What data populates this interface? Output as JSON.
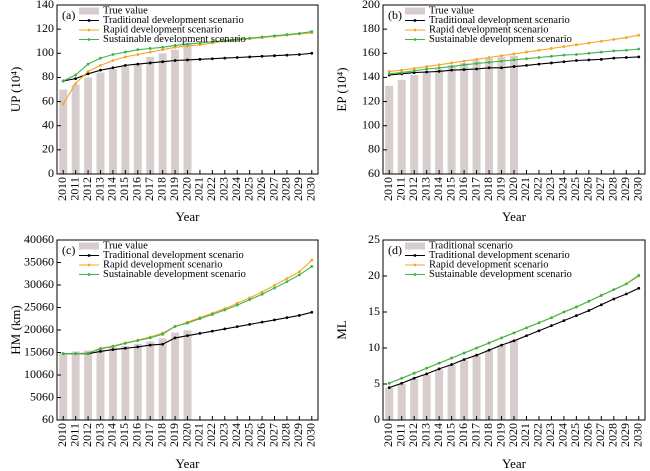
{
  "chart_data": [
    {
      "type": "combo",
      "label": "(a)",
      "ylabel": "UP (10⁴)",
      "xlabel": "Year",
      "categories": [
        "2010",
        "2011",
        "2012",
        "2013",
        "2014",
        "2015",
        "2016",
        "2017",
        "2018",
        "2019",
        "2020",
        "2021",
        "2022",
        "2023",
        "2024",
        "2025",
        "2026",
        "2027",
        "2028",
        "2029",
        "2030"
      ],
      "ylim": [
        0,
        140
      ],
      "yticks": [
        0,
        20,
        40,
        60,
        80,
        100,
        120,
        140
      ],
      "legend": "upper-left",
      "series": [
        {
          "name": "True value",
          "type": "bar",
          "color": "#d8cdcd",
          "values": [
            70,
            74,
            80,
            84,
            87,
            89,
            91,
            97,
            100,
            103,
            109,
            null,
            null,
            null,
            null,
            null,
            null,
            null,
            null,
            null,
            null
          ]
        },
        {
          "name": "Traditional development scenario",
          "type": "line",
          "color": "#000000",
          "values": [
            77,
            79,
            83,
            86,
            88,
            90,
            91,
            92,
            93,
            94,
            94.5,
            95,
            95.5,
            96,
            96.5,
            97,
            97.5,
            98,
            98.5,
            99,
            100
          ]
        },
        {
          "name": "Rapid development scenario",
          "type": "line",
          "color": "#f5a623",
          "values": [
            58,
            75,
            85,
            90,
            94,
            97,
            99,
            101,
            103,
            105,
            106,
            107,
            108.5,
            110,
            111,
            112,
            113,
            114,
            115,
            116,
            117
          ]
        },
        {
          "name": "Sustainable development scenario",
          "type": "line",
          "color": "#3cb44b",
          "values": [
            77,
            82,
            91,
            96,
            99,
            101,
            103,
            104,
            105,
            106.5,
            107.5,
            108.5,
            109.5,
            110.5,
            111.5,
            112.5,
            113.5,
            114.5,
            115.5,
            116.5,
            118
          ]
        }
      ]
    },
    {
      "type": "combo",
      "label": "(b)",
      "ylabel": "EP (10⁴)",
      "xlabel": "Year",
      "categories": [
        "2010",
        "2011",
        "2012",
        "2013",
        "2014",
        "2015",
        "2016",
        "2017",
        "2018",
        "2019",
        "2020",
        "2021",
        "2022",
        "2023",
        "2024",
        "2025",
        "2026",
        "2027",
        "2028",
        "2029",
        "2030"
      ],
      "ylim": [
        60,
        200
      ],
      "yticks": [
        60,
        80,
        100,
        120,
        140,
        160,
        180,
        200
      ],
      "legend": "upper-left",
      "series": [
        {
          "name": "True value",
          "type": "bar",
          "color": "#d8cdcd",
          "values": [
            133,
            138,
            142,
            145,
            147,
            150,
            152,
            154,
            156,
            157,
            158,
            null,
            null,
            null,
            null,
            null,
            null,
            null,
            null,
            null,
            null
          ]
        },
        {
          "name": "Traditional development scenario",
          "type": "line",
          "color": "#000000",
          "values": [
            142,
            143,
            144,
            144.5,
            145,
            146,
            146.5,
            147,
            148,
            148,
            149,
            150,
            151,
            152,
            153,
            154,
            154.5,
            155,
            156,
            156.5,
            157
          ]
        },
        {
          "name": "Rapid development scenario",
          "type": "line",
          "color": "#f5a623",
          "values": [
            145,
            146,
            147.5,
            149,
            150.5,
            152,
            153.5,
            155,
            156.5,
            158,
            159.5,
            161,
            162.5,
            164,
            165.5,
            167,
            168.5,
            170,
            171.5,
            173,
            175
          ]
        },
        {
          "name": "Sustainable development scenario",
          "type": "line",
          "color": "#3cb44b",
          "values": [
            143,
            144,
            145.5,
            147,
            148,
            149,
            150.5,
            151.5,
            152.5,
            153.5,
            154.5,
            155.5,
            156.5,
            157.5,
            158.5,
            159,
            160,
            161,
            162,
            162.5,
            163.5
          ]
        }
      ]
    },
    {
      "type": "combo",
      "label": "(c)",
      "ylabel": "HM (km)",
      "xlabel": "Year",
      "categories": [
        "2010",
        "2011",
        "2012",
        "2013",
        "2014",
        "2015",
        "2016",
        "2017",
        "2018",
        "2019",
        "2020",
        "2021",
        "2022",
        "2023",
        "2024",
        "2025",
        "2026",
        "2027",
        "2028",
        "2029",
        "2030"
      ],
      "ylim": [
        60,
        40060
      ],
      "yticks": [
        60,
        5060,
        10060,
        15060,
        20060,
        25060,
        30060,
        35060,
        40060
      ],
      "legend": "upper-left",
      "series": [
        {
          "name": "True value",
          "type": "bar",
          "color": "#d8cdcd",
          "values": [
            15000,
            15300,
            15500,
            15800,
            16200,
            16500,
            17000,
            17500,
            18200,
            19500,
            20000,
            null,
            null,
            null,
            null,
            null,
            null,
            null,
            null,
            null,
            null
          ]
        },
        {
          "name": "Traditional development scenario",
          "type": "line",
          "color": "#000000",
          "values": [
            14800,
            14800,
            14800,
            15300,
            15700,
            16000,
            16300,
            16700,
            16900,
            18300,
            18800,
            19300,
            19800,
            20300,
            20800,
            21300,
            21800,
            22300,
            22800,
            23300,
            24000
          ]
        },
        {
          "name": "Rapid development scenario",
          "type": "line",
          "color": "#f5a623",
          "values": [
            14800,
            14800,
            14900,
            16000,
            16500,
            17200,
            17800,
            18500,
            19400,
            20800,
            21800,
            22800,
            23800,
            24800,
            26000,
            27200,
            28500,
            30000,
            31500,
            33000,
            35600
          ]
        },
        {
          "name": "Sustainable development scenario",
          "type": "line",
          "color": "#3cb44b",
          "values": [
            14800,
            14800,
            14900,
            15900,
            16400,
            17100,
            17700,
            18300,
            19100,
            20900,
            21600,
            22600,
            23500,
            24500,
            25600,
            26800,
            28000,
            29400,
            30800,
            32300,
            34200
          ]
        }
      ]
    },
    {
      "type": "combo",
      "label": "(d)",
      "ylabel": "ML",
      "xlabel": "Year",
      "categories": [
        "2010",
        "2011",
        "2012",
        "2013",
        "2014",
        "2015",
        "2016",
        "2017",
        "2018",
        "2019",
        "2020",
        "2021",
        "2022",
        "2023",
        "2024",
        "2025",
        "2026",
        "2027",
        "2028",
        "2029",
        "2030"
      ],
      "ylim": [
        0,
        25
      ],
      "yticks": [
        0,
        5,
        10,
        15,
        20,
        25
      ],
      "legend": "upper-left",
      "series": [
        {
          "name": "Traditional scenario",
          "type": "bar",
          "color": "#d8cdcd",
          "values": [
            4.5,
            5,
            5.7,
            6.3,
            7,
            7.7,
            8.3,
            9,
            9.7,
            10.4,
            11.1,
            null,
            null,
            null,
            null,
            null,
            null,
            null,
            null,
            null,
            null
          ]
        },
        {
          "name": "Traditional development scenario",
          "type": "line",
          "color": "#000000",
          "values": [
            4.5,
            5.1,
            5.8,
            6.4,
            7.1,
            7.7,
            8.4,
            9.0,
            9.7,
            10.4,
            11.0,
            11.7,
            12.4,
            13.1,
            13.8,
            14.5,
            15.2,
            16.0,
            16.8,
            17.5,
            18.3
          ]
        },
        {
          "name": "Rapid development scenario",
          "type": "line",
          "color": "#f5a623",
          "values": [
            5.1,
            5.8,
            6.5,
            7.2,
            7.9,
            8.6,
            9.3,
            10.0,
            10.7,
            11.4,
            12.1,
            12.8,
            13.5,
            14.2,
            15.0,
            15.7,
            16.5,
            17.3,
            18.1,
            18.9,
            20.0
          ]
        },
        {
          "name": "Sustainable development scenario",
          "type": "line",
          "color": "#3cb44b",
          "values": [
            5.1,
            5.8,
            6.5,
            7.2,
            7.9,
            8.6,
            9.3,
            10.0,
            10.7,
            11.4,
            12.1,
            12.8,
            13.5,
            14.2,
            15.0,
            15.7,
            16.5,
            17.3,
            18.1,
            18.9,
            20.1
          ]
        }
      ]
    }
  ]
}
